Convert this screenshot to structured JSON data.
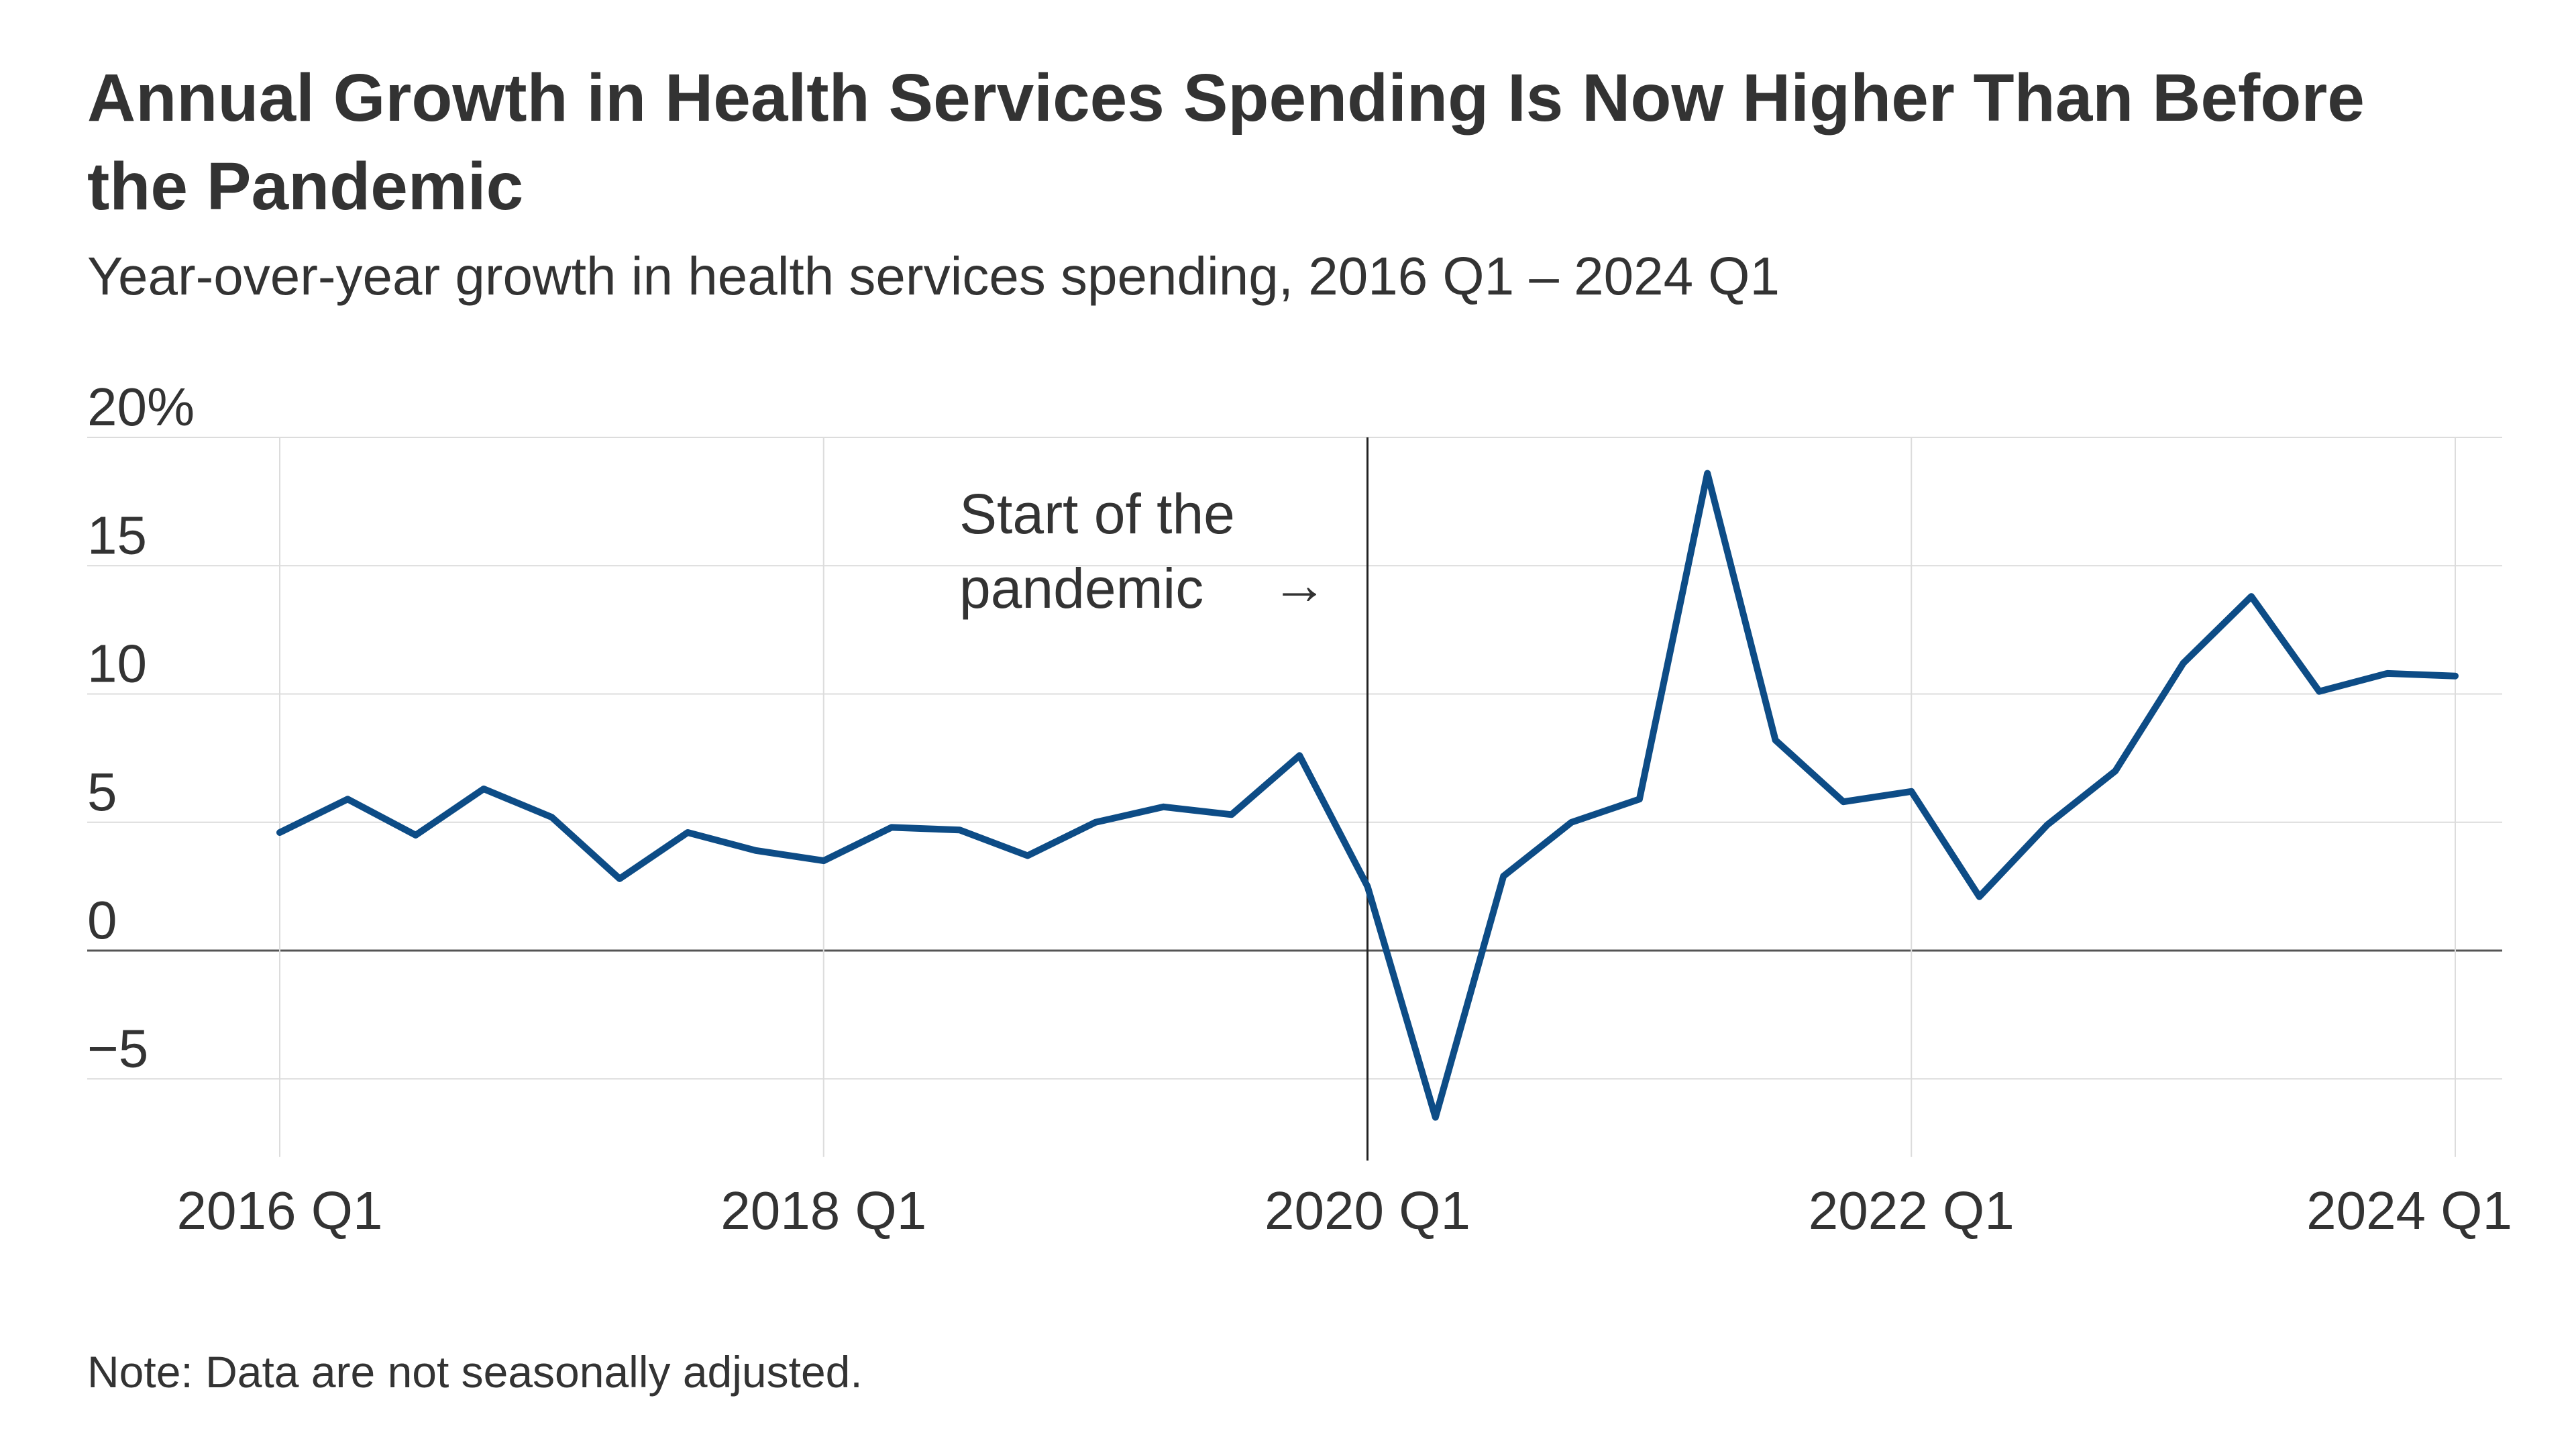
{
  "title": "Annual Growth in Health Services Spending Is Now Higher Than Before the Pandemic",
  "subtitle": "Year-over-year growth in health services spending, 2016 Q1 – 2024 Q1",
  "note": "Note: Data are not seasonally adjusted.",
  "chart_data": {
    "type": "line",
    "title": "Annual Growth in Health Services Spending Is Now Higher Than Before the Pandemic",
    "subtitle": "Year-over-year growth in health services spending, 2016 Q1 – 2024 Q1",
    "xlabel": "",
    "ylabel": "",
    "ylim": [
      -7,
      20
    ],
    "y_ticks": [
      -5,
      0,
      5,
      10,
      15,
      20
    ],
    "y_tick_labels": [
      "−5",
      "0",
      "5",
      "10",
      "15",
      "20%"
    ],
    "x_ticks": [
      "2016 Q1",
      "2018 Q1",
      "2020 Q1",
      "2022 Q1",
      "2024 Q1"
    ],
    "grid": true,
    "line_color": "#0d4c86",
    "categories": [
      "2016 Q1",
      "2016 Q2",
      "2016 Q3",
      "2016 Q4",
      "2017 Q1",
      "2017 Q2",
      "2017 Q3",
      "2017 Q4",
      "2018 Q1",
      "2018 Q2",
      "2018 Q3",
      "2018 Q4",
      "2019 Q1",
      "2019 Q2",
      "2019 Q3",
      "2019 Q4",
      "2020 Q1",
      "2020 Q2",
      "2020 Q3",
      "2020 Q4",
      "2021 Q1",
      "2021 Q2",
      "2021 Q3",
      "2021 Q4",
      "2022 Q1",
      "2022 Q2",
      "2022 Q3",
      "2022 Q4",
      "2023 Q1",
      "2023 Q2",
      "2023 Q3",
      "2023 Q4",
      "2024 Q1"
    ],
    "series": [
      {
        "name": "Year-over-year growth in health services spending",
        "values": [
          4.6,
          5.9,
          4.5,
          6.3,
          5.2,
          2.8,
          4.6,
          3.9,
          3.5,
          4.8,
          4.7,
          3.7,
          5.0,
          5.6,
          5.3,
          7.6,
          2.5,
          -6.5,
          2.9,
          5.0,
          5.9,
          18.6,
          8.2,
          5.8,
          6.2,
          2.1,
          4.9,
          7.0,
          11.2,
          13.8,
          10.1,
          10.8,
          10.7
        ]
      }
    ],
    "annotations": [
      {
        "text_lines": [
          "Start of the",
          "pandemic"
        ],
        "arrow": "→",
        "at": "2020 Q1"
      }
    ]
  }
}
